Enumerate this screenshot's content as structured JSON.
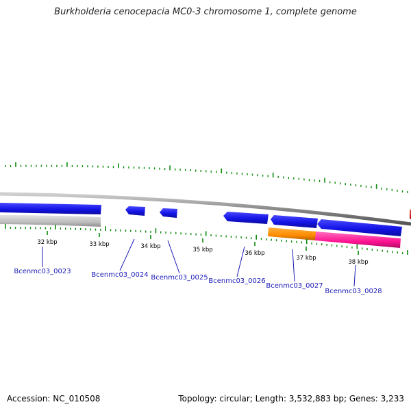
{
  "title": "Burkholderia cenocepacia MC0-3 chromosome 1, complete genome",
  "footer": {
    "accession": "Accession: NC_010508",
    "summary": "Topology: circular; Length: 3,532,883 bp; Genes: 3,233"
  },
  "colors": {
    "backbone": "#7a7a7a",
    "gene_blue": "#1a1aee",
    "gene_gray": "#bdbdbd",
    "gene_orange": "#ff8c00",
    "gene_pink": "#ff1493",
    "gene_red": "#ee1111",
    "tick": "#0a8a0a",
    "label_link": "#1a1ab5"
  },
  "scale_labels": [
    "32 kbp",
    "33 kbp",
    "34 kbp",
    "35 kbp",
    "36 kbp",
    "37 kbp",
    "38 kbp"
  ],
  "gene_labels": [
    "Bcenmc03_0023",
    "Bcenmc03_0024",
    "Bcenmc03_0025",
    "Bcenmc03_0026",
    "Bcenmc03_0027",
    "Bcenmc03_0028"
  ]
}
